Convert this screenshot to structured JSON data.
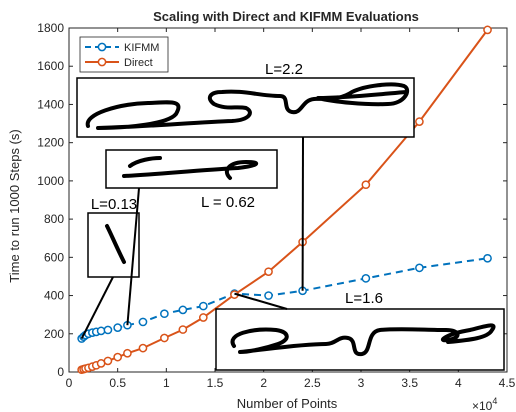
{
  "chart_data": {
    "type": "line",
    "title": "Scaling with Direct and KIFMM Evaluations",
    "xlabel": "Number of Points",
    "ylabel": "Time to run 1000 Steps (s)",
    "x_exponent_label": "×10",
    "x_exponent_power": "4",
    "xlim": [
      0,
      45000
    ],
    "ylim": [
      0,
      1800
    ],
    "x_ticks": [
      0,
      5000,
      10000,
      15000,
      20000,
      25000,
      30000,
      35000,
      40000,
      45000
    ],
    "x_tick_labels": [
      "0",
      "0.5",
      "1",
      "1.5",
      "2",
      "2.5",
      "3",
      "3.5",
      "4",
      "4.5"
    ],
    "y_ticks": [
      0,
      200,
      400,
      600,
      800,
      1000,
      1200,
      1400,
      1600,
      1800
    ],
    "y_tick_labels": [
      "0",
      "200",
      "400",
      "600",
      "800",
      "1000",
      "1200",
      "1400",
      "1600",
      "1800"
    ],
    "legend_position": "top-left",
    "grid": false,
    "series": [
      {
        "name": "KIFMM",
        "style": "dashed",
        "marker": "circle",
        "color": "#0072BD",
        "x": [
          1300,
          1500,
          1700,
          2000,
          2400,
          2800,
          3300,
          4000,
          5000,
          6000,
          7600,
          9800,
          11700,
          13800,
          17000,
          20500,
          24000,
          30500,
          36000,
          43000
        ],
        "y": [
          175,
          185,
          193,
          200,
          206,
          210,
          215,
          220,
          232,
          245,
          262,
          305,
          325,
          345,
          410,
          400,
          425,
          490,
          545,
          595
        ]
      },
      {
        "name": "Direct",
        "style": "solid",
        "marker": "circle",
        "color": "#D95319",
        "x": [
          1300,
          1500,
          1700,
          2000,
          2400,
          2800,
          3300,
          4000,
          5000,
          6000,
          7600,
          9800,
          11700,
          13800,
          17000,
          20500,
          24000,
          30500,
          36000,
          43000
        ],
        "y": [
          12,
          15,
          18,
          22,
          28,
          35,
          45,
          58,
          78,
          98,
          125,
          178,
          222,
          285,
          405,
          525,
          680,
          980,
          1310,
          1790
        ]
      }
    ],
    "annotations": [
      {
        "label": "L=2.2",
        "x": 24000,
        "y": 425
      },
      {
        "label": "L = 0.62",
        "x": 6000,
        "y": 245
      },
      {
        "label": "L=0.13",
        "x": 1300,
        "y": 175
      },
      {
        "label": "L=1.6",
        "x": 17000,
        "y": 410
      }
    ]
  }
}
